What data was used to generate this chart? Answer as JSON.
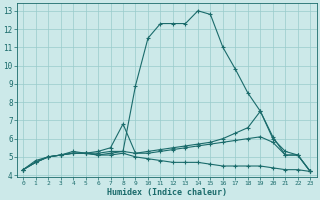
{
  "xlabel": "Humidex (Indice chaleur)",
  "xlim": [
    -0.5,
    23.5
  ],
  "ylim": [
    3.9,
    13.4
  ],
  "xticks": [
    0,
    1,
    2,
    3,
    4,
    5,
    6,
    7,
    8,
    9,
    10,
    11,
    12,
    13,
    14,
    15,
    16,
    17,
    18,
    19,
    20,
    21,
    22,
    23
  ],
  "yticks": [
    4,
    5,
    6,
    7,
    8,
    9,
    10,
    11,
    12,
    13
  ],
  "bg_color": "#cce9e9",
  "line_color": "#1a6b6b",
  "grid_color": "#99cccc",
  "lines": [
    {
      "x": [
        0,
        1,
        2,
        3,
        4,
        5,
        6,
        7,
        8,
        9,
        10,
        11,
        12,
        13,
        14,
        15,
        16,
        17,
        18,
        19,
        20,
        21,
        22,
        23
      ],
      "y": [
        4.3,
        4.8,
        5.0,
        5.1,
        5.3,
        5.2,
        5.2,
        5.3,
        5.3,
        8.9,
        11.5,
        12.3,
        12.3,
        12.3,
        13.0,
        12.8,
        11.0,
        9.8,
        8.5,
        7.5,
        6.1,
        5.1,
        5.1,
        4.2
      ]
    },
    {
      "x": [
        0,
        1,
        2,
        3,
        4,
        5,
        6,
        7,
        8,
        9,
        10,
        11,
        12,
        13,
        14,
        15,
        16,
        17,
        18,
        19,
        20,
        21,
        22,
        23
      ],
      "y": [
        4.3,
        4.7,
        5.0,
        5.1,
        5.2,
        5.2,
        5.3,
        5.5,
        6.8,
        5.2,
        5.3,
        5.4,
        5.5,
        5.6,
        5.7,
        5.8,
        6.0,
        6.3,
        6.6,
        7.5,
        6.0,
        5.3,
        5.1,
        4.2
      ]
    },
    {
      "x": [
        0,
        1,
        2,
        3,
        4,
        5,
        6,
        7,
        8,
        9,
        10,
        11,
        12,
        13,
        14,
        15,
        16,
        17,
        18,
        19,
        20,
        21,
        22,
        23
      ],
      "y": [
        4.3,
        4.7,
        5.0,
        5.1,
        5.2,
        5.2,
        5.1,
        5.2,
        5.3,
        5.2,
        5.2,
        5.3,
        5.4,
        5.5,
        5.6,
        5.7,
        5.8,
        5.9,
        6.0,
        6.1,
        5.8,
        5.1,
        5.1,
        4.2
      ]
    },
    {
      "x": [
        0,
        1,
        2,
        3,
        4,
        5,
        6,
        7,
        8,
        9,
        10,
        11,
        12,
        13,
        14,
        15,
        16,
        17,
        18,
        19,
        20,
        21,
        22,
        23
      ],
      "y": [
        4.3,
        4.7,
        5.0,
        5.1,
        5.2,
        5.2,
        5.1,
        5.1,
        5.2,
        5.0,
        4.9,
        4.8,
        4.7,
        4.7,
        4.7,
        4.6,
        4.5,
        4.5,
        4.5,
        4.5,
        4.4,
        4.3,
        4.3,
        4.2
      ]
    }
  ]
}
